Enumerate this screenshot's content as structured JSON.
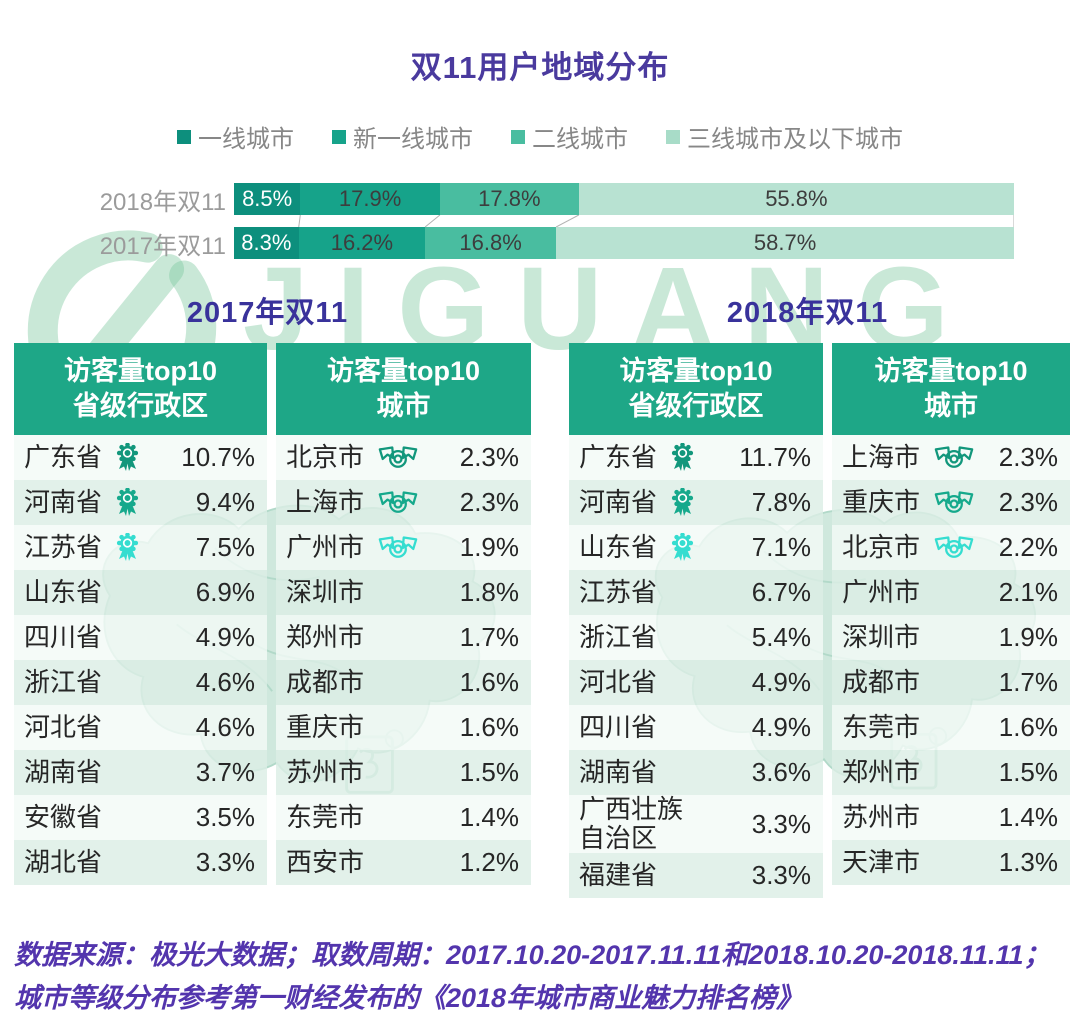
{
  "title": "双11用户地域分布",
  "watermark_text": "JIGUANG",
  "colors": {
    "accent_green": "#1ea787",
    "title_purple": "#4a3a9e",
    "section_navy": "#39329b",
    "footer_purple": "#5335ad",
    "label_gray": "#9b9b9b",
    "watermark_green": "#7ec79e"
  },
  "chart_data": {
    "type": "bar",
    "stacked": true,
    "orientation": "horizontal",
    "unit": "%",
    "title": "双11用户地域分布",
    "legend": [
      "一线城市",
      "新一线城市",
      "二线城市",
      "三线城市及以下城市"
    ],
    "legend_position": "top",
    "series_colors": [
      "#0d8f7d",
      "#16a38a",
      "#49bda0",
      "#a8dcc8"
    ],
    "series_alpha": [
      1,
      1,
      1,
      0.82
    ],
    "bars": [
      {
        "label": "2018年双11",
        "values": [
          8.5,
          17.9,
          17.8,
          55.8
        ]
      },
      {
        "label": "2017年双11",
        "values": [
          8.3,
          16.2,
          16.8,
          58.7
        ]
      }
    ]
  },
  "medal_colors": [
    "#12977c",
    "#16a98c",
    "#35ddd0"
  ],
  "groups": [
    {
      "section_title": "2017年双11",
      "tables": [
        {
          "header_line1": "访客量top10",
          "header_line2": "省级行政区",
          "medal_type": "rosette",
          "rows": [
            {
              "name": "广东省",
              "value": "10.7%",
              "medal": 1
            },
            {
              "name": "河南省",
              "value": "9.4%",
              "medal": 2
            },
            {
              "name": "江苏省",
              "value": "7.5%",
              "medal": 3
            },
            {
              "name": "山东省",
              "value": "6.9%"
            },
            {
              "name": "四川省",
              "value": "4.9%"
            },
            {
              "name": "浙江省",
              "value": "4.6%"
            },
            {
              "name": "河北省",
              "value": "4.6%"
            },
            {
              "name": "湖南省",
              "value": "3.7%"
            },
            {
              "name": "安徽省",
              "value": "3.5%"
            },
            {
              "name": "湖北省",
              "value": "3.3%"
            }
          ]
        },
        {
          "header_line1": "访客量top10",
          "header_line2": "城市",
          "medal_type": "ribbon",
          "rows": [
            {
              "name": "北京市",
              "value": "2.3%",
              "medal": 1
            },
            {
              "name": "上海市",
              "value": "2.3%",
              "medal": 2
            },
            {
              "name": "广州市",
              "value": "1.9%",
              "medal": 3
            },
            {
              "name": "深圳市",
              "value": "1.8%"
            },
            {
              "name": "郑州市",
              "value": "1.7%"
            },
            {
              "name": "成都市",
              "value": "1.6%"
            },
            {
              "name": "重庆市",
              "value": "1.6%"
            },
            {
              "name": "苏州市",
              "value": "1.5%"
            },
            {
              "name": "东莞市",
              "value": "1.4%"
            },
            {
              "name": "西安市",
              "value": "1.2%"
            }
          ]
        }
      ]
    },
    {
      "section_title": "2018年双11",
      "tables": [
        {
          "header_line1": "访客量top10",
          "header_line2": "省级行政区",
          "medal_type": "rosette",
          "rows": [
            {
              "name": "广东省",
              "value": "11.7%",
              "medal": 1
            },
            {
              "name": "河南省",
              "value": "7.8%",
              "medal": 2
            },
            {
              "name": "山东省",
              "value": "7.1%",
              "medal": 3
            },
            {
              "name": "江苏省",
              "value": "6.7%"
            },
            {
              "name": "浙江省",
              "value": "5.4%"
            },
            {
              "name": "河北省",
              "value": "4.9%"
            },
            {
              "name": "四川省",
              "value": "4.9%"
            },
            {
              "name": "湖南省",
              "value": "3.6%"
            },
            {
              "name": "广西壮族\n自治区",
              "value": "3.3%"
            },
            {
              "name": "福建省",
              "value": "3.3%"
            }
          ]
        },
        {
          "header_line1": "访客量top10",
          "header_line2": "城市",
          "medal_type": "ribbon",
          "rows": [
            {
              "name": "上海市",
              "value": "2.3%",
              "medal": 1
            },
            {
              "name": "重庆市",
              "value": "2.3%",
              "medal": 2
            },
            {
              "name": "北京市",
              "value": "2.2%",
              "medal": 3
            },
            {
              "name": "广州市",
              "value": "2.1%"
            },
            {
              "name": "深圳市",
              "value": "1.9%"
            },
            {
              "name": "成都市",
              "value": "1.7%"
            },
            {
              "name": "东莞市",
              "value": "1.6%"
            },
            {
              "name": "郑州市",
              "value": "1.5%"
            },
            {
              "name": "苏州市",
              "value": "1.4%"
            },
            {
              "name": "天津市",
              "value": "1.3%"
            }
          ]
        }
      ]
    }
  ],
  "footer": {
    "line1": "数据来源：极光大数据；取数周期：2017.10.20-2017.11.11和2018.10.20-2018.11.11；",
    "line2": "城市等级分布参考第一财经发布的《2018年城市商业魅力排名榜》"
  }
}
